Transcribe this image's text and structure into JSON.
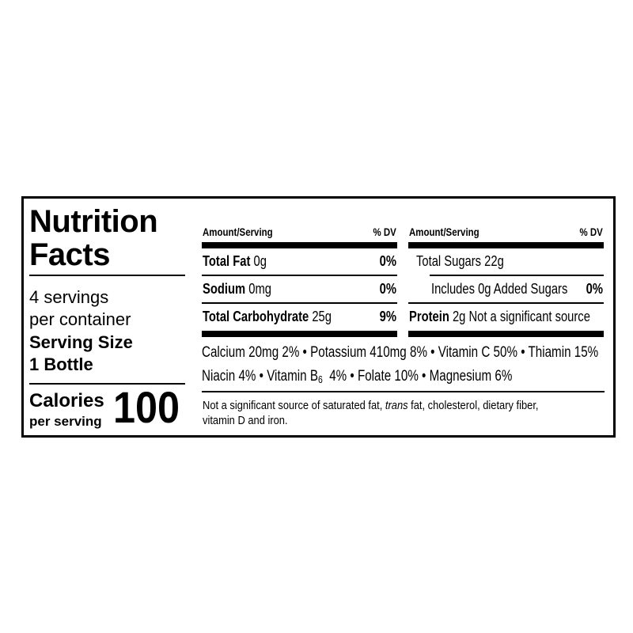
{
  "title": {
    "line1": "Nutrition",
    "line2": "Facts"
  },
  "servings": {
    "count": "4 servings",
    "per": "per container",
    "size_label": "Serving Size",
    "size_value": "1 Bottle"
  },
  "calories": {
    "label": "Calories",
    "sublabel": "per serving",
    "value": "100"
  },
  "left_table": {
    "header_amount": "Amount/Serving",
    "header_dv": "% DV",
    "rows": [
      {
        "name": "Total Fat",
        "amount": "0g",
        "dv": "0%"
      },
      {
        "name": "Sodium",
        "amount": "0mg",
        "dv": "0%"
      },
      {
        "name": "Total Carbohydrate",
        "amount": "25g",
        "dv": "9%"
      }
    ]
  },
  "right_table": {
    "header_amount": "Amount/Serving",
    "header_dv": "% DV",
    "rows": [
      {
        "name": "Total Sugars 22g",
        "dv": ""
      },
      {
        "name": "Includes 0g Added Sugars",
        "dv": "0%"
      },
      {
        "name": "Protein",
        "amount": "2g Not a significant source"
      }
    ]
  },
  "vitamins": {
    "line1": "Calcium 20mg 2% • Potassium 410mg 8% •  Vitamin C 50% • Thiamin 15%",
    "line2_a": "Niacin 4% • Vitamin B",
    "line2_sub": "6",
    "line2_b": "  4% • Folate 10% • Magnesium 6%"
  },
  "footnote": {
    "part1": "Not a significant source of saturated fat, ",
    "italic": "trans",
    "part2": " fat, cholesterol, dietary fiber,",
    "line2": "vitamin D and iron."
  }
}
